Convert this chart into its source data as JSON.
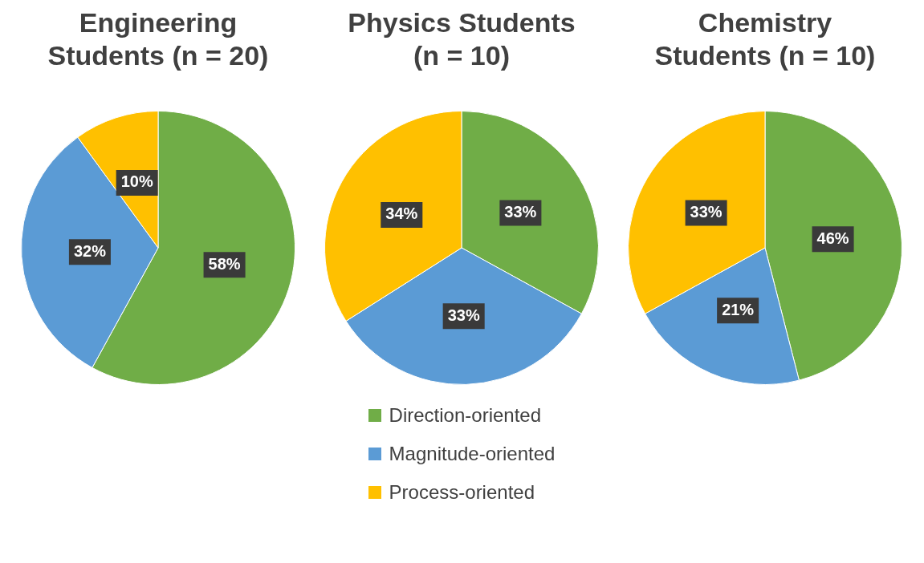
{
  "chart_data": [
    {
      "type": "pie",
      "title": "Engineering Students (n = 20)",
      "categories": [
        null,
        null,
        null
      ],
      "values": [
        58,
        32,
        10
      ],
      "colors": [
        "#70ad47",
        "#5b9bd5",
        "#ffc000"
      ],
      "value_labels": [
        "58%",
        "32%",
        "10%"
      ]
    },
    {
      "type": "pie",
      "title": "Physics Students (n = 10)",
      "categories": [
        "Direction-oriented",
        "Magnitude-oriented",
        "Process-oriented"
      ],
      "values": [
        33,
        33,
        34
      ],
      "colors": [
        "#70ad47",
        "#5b9bd5",
        "#ffc000"
      ],
      "value_labels": [
        "33%",
        "33%",
        "34%"
      ],
      "legend": "bottom"
    },
    {
      "type": "pie",
      "title": "Chemistry Students (n = 10)",
      "categories": [
        null,
        null,
        null
      ],
      "values": [
        46,
        21,
        33
      ],
      "colors": [
        "#70ad47",
        "#5b9bd5",
        "#ffc000"
      ],
      "value_labels": [
        "46%",
        "21%",
        "33%"
      ]
    }
  ]
}
